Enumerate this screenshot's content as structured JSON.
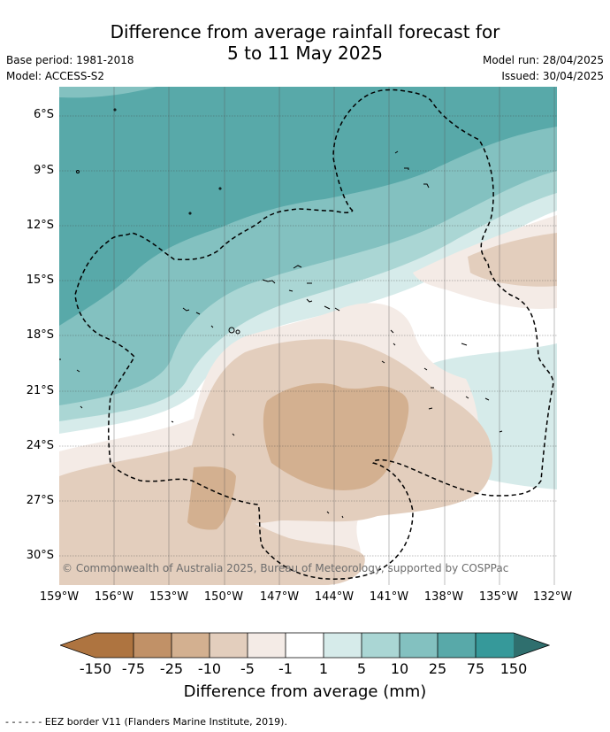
{
  "title_line1": "Difference from average rainfall forecast for",
  "title_line2": "5 to 11 May 2025",
  "base_period": "Base period: 1981-2018",
  "model": "Model: ACCESS-S2",
  "model_run": "Model run: 28/04/2025",
  "issued": "Issued: 30/04/2025",
  "lat_labels": [
    "6°S",
    "9°S",
    "12°S",
    "15°S",
    "18°S",
    "21°S",
    "24°S",
    "27°S",
    "30°S"
  ],
  "lon_labels": [
    "159°W",
    "156°W",
    "153°W",
    "150°W",
    "147°W",
    "144°W",
    "141°W",
    "138°W",
    "135°W",
    "132°W"
  ],
  "copyright": "© Commonwealth of Australia 2025, Bureau of Meteorology, supported by COSPPac",
  "colorbar": {
    "ticks": [
      "-150",
      "-75",
      "-25",
      "-10",
      "-5",
      "-1",
      "1",
      "5",
      "10",
      "25",
      "75",
      "150"
    ],
    "colors": [
      "#ae7440",
      "#c19167",
      "#d3b090",
      "#e3cebd",
      "#f4ebe6",
      "#ffffff",
      "#d6ebea",
      "#aad6d4",
      "#83c1c0",
      "#58a9a9",
      "#36999a",
      "#2f6f6e"
    ],
    "label": "Difference from average (mm)"
  },
  "footnote": "- -  - -  - - EEZ border V11 (Flanders Marine Institute, 2019)."
}
